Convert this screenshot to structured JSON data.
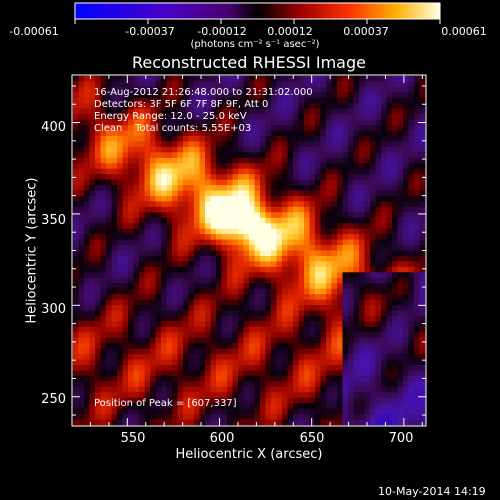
{
  "colorbar": {
    "ticks": [
      "-0.00061",
      "-0.00037",
      "-0.00012",
      "0.00012",
      "0.00037",
      "0.00061"
    ],
    "units_label": "(photons cm⁻² s⁻¹ asec⁻²)"
  },
  "image": {
    "title": "Reconstructed RHESSI Image",
    "info_lines": [
      "16-Aug-2012 21:26:48.000 to 21:31:02.000",
      "Detectors: 3F 5F 6F 7F 8F 9F, Att 0",
      "Energy Range: 12.0 - 25.0 keV",
      "Clean    Total counts: 5.55E+03"
    ],
    "peak_label": "Position of Peak = [607,337]"
  },
  "axes": {
    "xlabel": "Heliocentric X (arcsec)",
    "ylabel": "Heliocentric Y (arcsec)",
    "x_ticks": [
      "550",
      "600",
      "650",
      "700"
    ],
    "y_ticks": [
      "250",
      "300",
      "350",
      "400"
    ],
    "x_range": [
      520,
      712
    ],
    "y_range": [
      234,
      426
    ]
  },
  "footer": {
    "date": "10-May-2014 14:19"
  },
  "colors": {
    "palette": "blue-purple-red-yellow-white",
    "frame": "#ffffff",
    "background": "#000000"
  }
}
